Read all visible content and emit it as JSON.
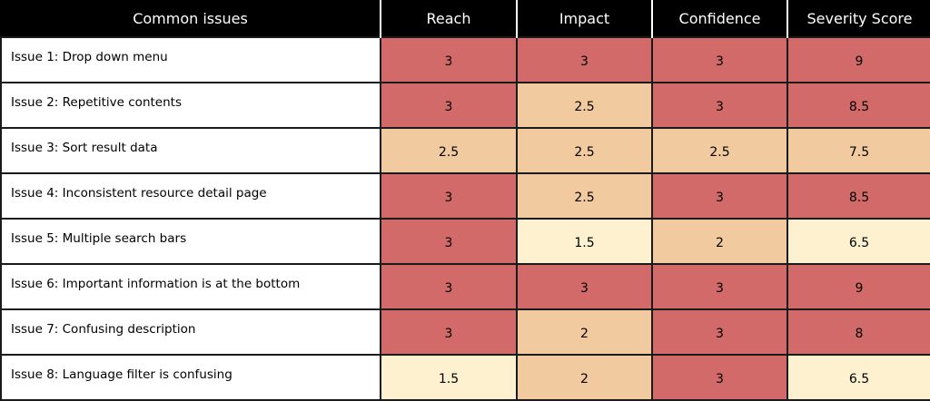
{
  "table": {
    "headers": [
      "Common issues",
      "Reach",
      "Impact",
      "Confidence",
      "Severity Score"
    ],
    "rows": [
      {
        "issue": "Issue 1: Drop down menu",
        "reach": "3",
        "impact": "3",
        "confidence": "3",
        "severity": "9"
      },
      {
        "issue": "Issue 2: Repetitive contents",
        "reach": "3",
        "impact": "2.5",
        "confidence": "3",
        "severity": "8.5"
      },
      {
        "issue": "Issue 3: Sort result data",
        "reach": "2.5",
        "impact": "2.5",
        "confidence": "2.5",
        "severity": "7.5"
      },
      {
        "issue": "Issue 4: Inconsistent resource detail page",
        "reach": "3",
        "impact": "2.5",
        "confidence": "3",
        "severity": "8.5"
      },
      {
        "issue": "Issue 5: Multiple search bars",
        "reach": "3",
        "impact": "1.5",
        "confidence": "2",
        "severity": "6.5"
      },
      {
        "issue": "Issue 6: Important information is at the bottom",
        "reach": "3",
        "impact": "3",
        "confidence": "3",
        "severity": "9"
      },
      {
        "issue": "Issue 7: Confusing description",
        "reach": "3",
        "impact": "2",
        "confidence": "3",
        "severity": "8"
      },
      {
        "issue": "Issue 8: Language filter is confusing",
        "reach": "1.5",
        "impact": "2",
        "confidence": "3",
        "severity": "6.5"
      }
    ]
  },
  "colors": {
    "high": "#d26a6a",
    "medium": "#f2caa0",
    "low": "#fdf1cf",
    "header_bg": "#000000",
    "header_text": "#ffffff"
  }
}
